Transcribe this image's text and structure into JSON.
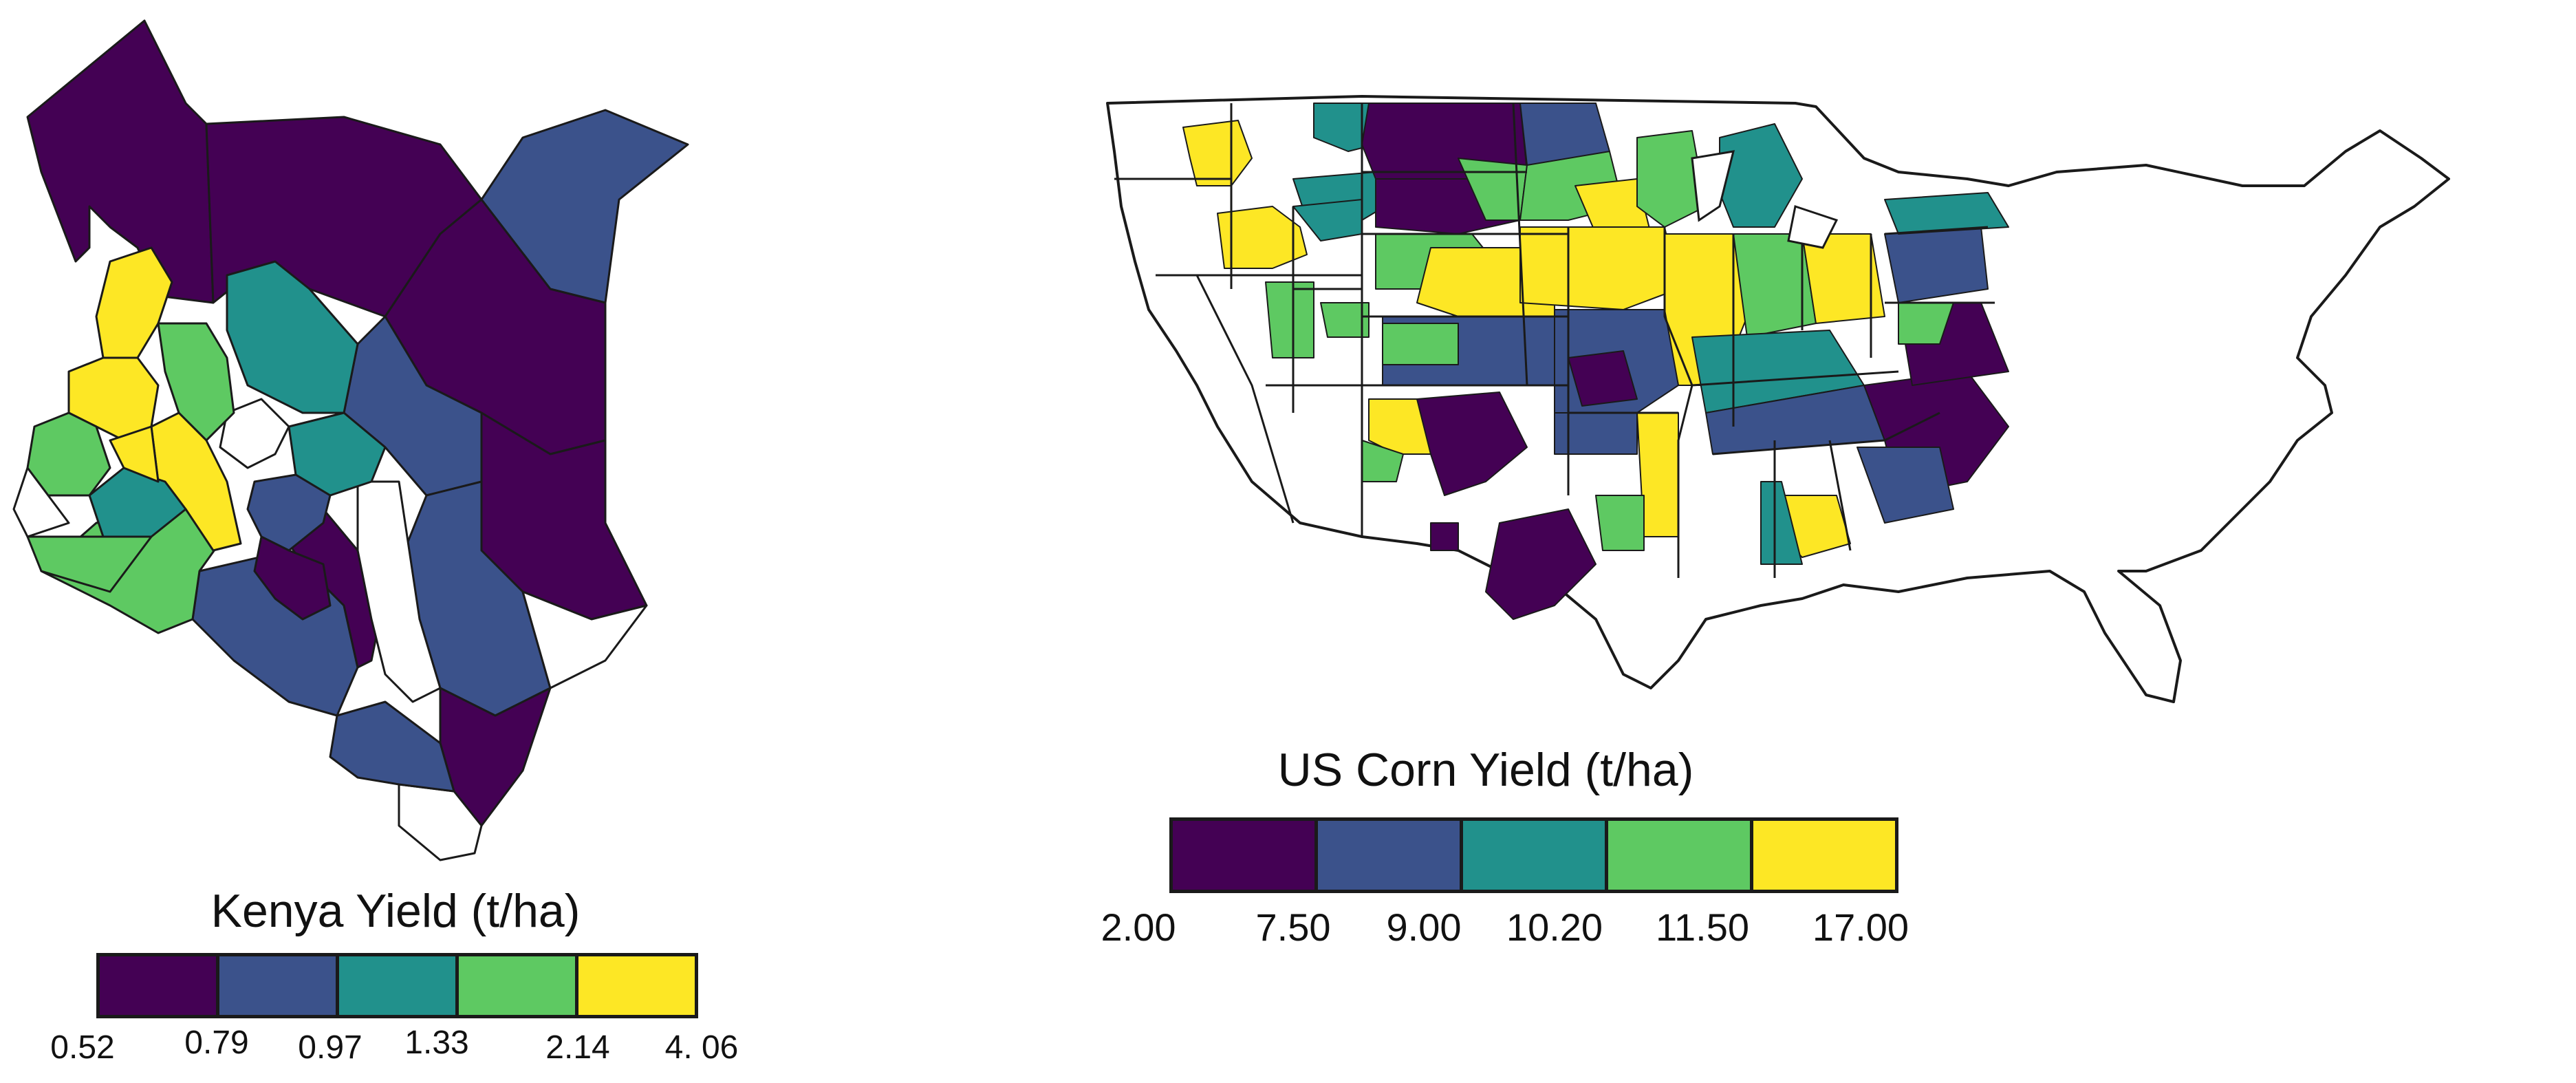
{
  "palette": {
    "c1": "#440154",
    "c2": "#3b528b",
    "c3": "#21918c",
    "c4": "#5ec962",
    "c5": "#fde725",
    "outline": "#1a1a1a",
    "empty": "#ffffff"
  },
  "kenya": {
    "legend": {
      "title": "Kenya Yield (t/ha)",
      "ticks": [
        "0.52",
        "0.79",
        "0.97",
        "1.33",
        "2.14",
        "4. 06"
      ],
      "classes": [
        "c1",
        "c2",
        "c3",
        "c4",
        "c5"
      ]
    }
  },
  "us": {
    "legend": {
      "title": "US Corn Yield (t/ha)",
      "ticks": [
        "2.00",
        "7.50",
        "9.00",
        "10.20",
        "11.50",
        "17.00"
      ],
      "classes": [
        "c1",
        "c2",
        "c3",
        "c4",
        "c5"
      ]
    }
  }
}
